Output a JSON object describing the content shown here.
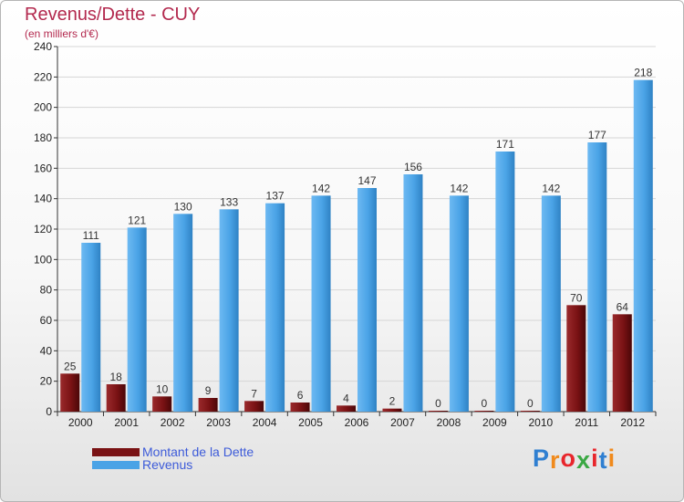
{
  "header": {
    "title": "Revenus/Dette - CUY",
    "subtitle": "(en milliers d'€)"
  },
  "chart_data": {
    "type": "bar",
    "categories": [
      "2000",
      "2001",
      "2002",
      "2003",
      "2004",
      "2005",
      "2006",
      "2007",
      "2008",
      "2009",
      "2010",
      "2011",
      "2012"
    ],
    "series": [
      {
        "name": "Montant de la Dette",
        "color": "#7a1214",
        "values": [
          25,
          18,
          10,
          9,
          7,
          6,
          4,
          2,
          0,
          0,
          0,
          70,
          64
        ]
      },
      {
        "name": "Revenus",
        "color": "#4aa3e6",
        "values": [
          111,
          121,
          130,
          133,
          137,
          142,
          147,
          156,
          142,
          171,
          142,
          177,
          218
        ]
      }
    ],
    "yticks": [
      0,
      20,
      40,
      60,
      80,
      100,
      120,
      140,
      160,
      180,
      200,
      220,
      240
    ],
    "ylim": [
      0,
      240
    ],
    "grid": true,
    "legend_position": "bottom-left"
  },
  "legend": [
    {
      "label": "Montant de la Dette",
      "color": "#7a1214"
    },
    {
      "label": "Revenus",
      "color": "#4aa3e6"
    }
  ],
  "brand": {
    "letters": [
      "P",
      "r",
      "o",
      "x",
      "i",
      "t",
      "i"
    ],
    "colors": [
      "#2f7fd1",
      "#f08a1c",
      "#e8262c",
      "#3aa843",
      "#e8262c",
      "#2f7fd1",
      "#f08a1c"
    ]
  }
}
